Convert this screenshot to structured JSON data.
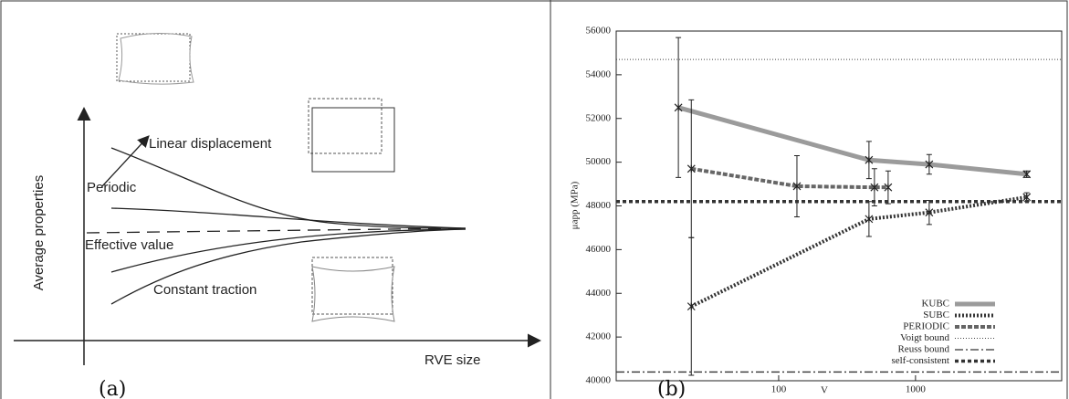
{
  "diagram": {
    "panel_label": "(a)",
    "y_axis_label": "Average properties",
    "x_axis_label": "RVE size",
    "curves": [
      "Linear displacement",
      "Periodic",
      "Effective value",
      "Constant traction"
    ]
  },
  "chart_data": {
    "type": "line",
    "panel_label": "(b)",
    "xlabel": "V",
    "ylabel": "μapp (MPa)",
    "xlog": true,
    "xlim": [
      6.5,
      11700
    ],
    "xticks": [
      100,
      1000
    ],
    "ylim": [
      40000,
      56000
    ],
    "yticks": [
      40000,
      42000,
      44000,
      46000,
      48000,
      50000,
      52000,
      54000,
      56000
    ],
    "legend": "lower right",
    "series": [
      {
        "name": "KUBC",
        "color": "#8a8a8a",
        "x": [
          18.5,
          457,
          1259,
          6500
        ],
        "values": [
          52500,
          50100,
          49900,
          49450
        ],
        "errors": [
          3200,
          850,
          450,
          150
        ]
      },
      {
        "name": "SUBC",
        "color": "#333333",
        "x": [
          23,
          457,
          1259,
          6500
        ],
        "values": [
          43400,
          47400,
          47700,
          48400
        ],
        "errors": [
          3150,
          800,
          550,
          200
        ]
      },
      {
        "name": "PERIODIC",
        "color": "#555555",
        "x": [
          23,
          136,
          501,
          631
        ],
        "values": [
          49700,
          48900,
          48850,
          48850
        ],
        "errors": [
          3150,
          1400,
          850,
          750
        ]
      },
      {
        "name": "Voigt bound",
        "color": "#444444",
        "value": 54700
      },
      {
        "name": "Reuss bound",
        "color": "#333333",
        "value": 40400
      },
      {
        "name": "self-consistent",
        "color": "#333333",
        "value": 48200
      }
    ]
  }
}
